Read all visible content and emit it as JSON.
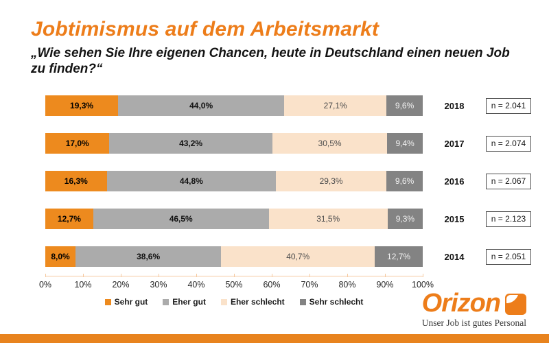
{
  "page": {
    "title": "Jobtimismus auf dem Arbeitsmarkt",
    "subtitle": "„Wie sehen Sie Ihre eigenen Chancen, heute in Deutschland einen neuen Job zu finden?“"
  },
  "chart_data": {
    "type": "bar",
    "variant": "stacked-horizontal",
    "categories": [
      "2018",
      "2017",
      "2016",
      "2015",
      "2014"
    ],
    "series": [
      {
        "name": "Sehr gut",
        "color": "#ED8A1E",
        "label_color": "#000000",
        "values": [
          19.3,
          17.0,
          16.3,
          12.7,
          8.0
        ]
      },
      {
        "name": "Eher gut",
        "color": "#ABABAB",
        "label_color": "#111111",
        "values": [
          44.0,
          43.2,
          44.8,
          46.5,
          38.6
        ]
      },
      {
        "name": "Eher schlecht",
        "color": "#FAE2CA",
        "label_color": "#4D4D4D",
        "values": [
          27.1,
          30.5,
          29.3,
          31.5,
          40.7
        ]
      },
      {
        "name": "Sehr schlecht",
        "color": "#838383",
        "label_color": "#F2F2F2",
        "values": [
          9.6,
          9.4,
          9.6,
          9.3,
          12.7
        ]
      }
    ],
    "sample_sizes": [
      "n = 2.041",
      "n = 2.074",
      "n = 2.067",
      "n = 2.123",
      "n = 2.051"
    ],
    "x_ticks": [
      "0%",
      "10%",
      "20%",
      "30%",
      "40%",
      "50%",
      "60%",
      "70%",
      "80%",
      "90%",
      "100%"
    ],
    "xlim": [
      0,
      100
    ],
    "grid": false,
    "legend_position": "bottom",
    "value_label_format": "percent-comma"
  },
  "footer": {
    "brand": "Orizon",
    "tagline": "Unser Job ist gutes Personal"
  },
  "colors": {
    "accent_orange": "#ED7D1A",
    "axis_line": "#F5C9A0",
    "bottom_bar": "#E8831E"
  }
}
